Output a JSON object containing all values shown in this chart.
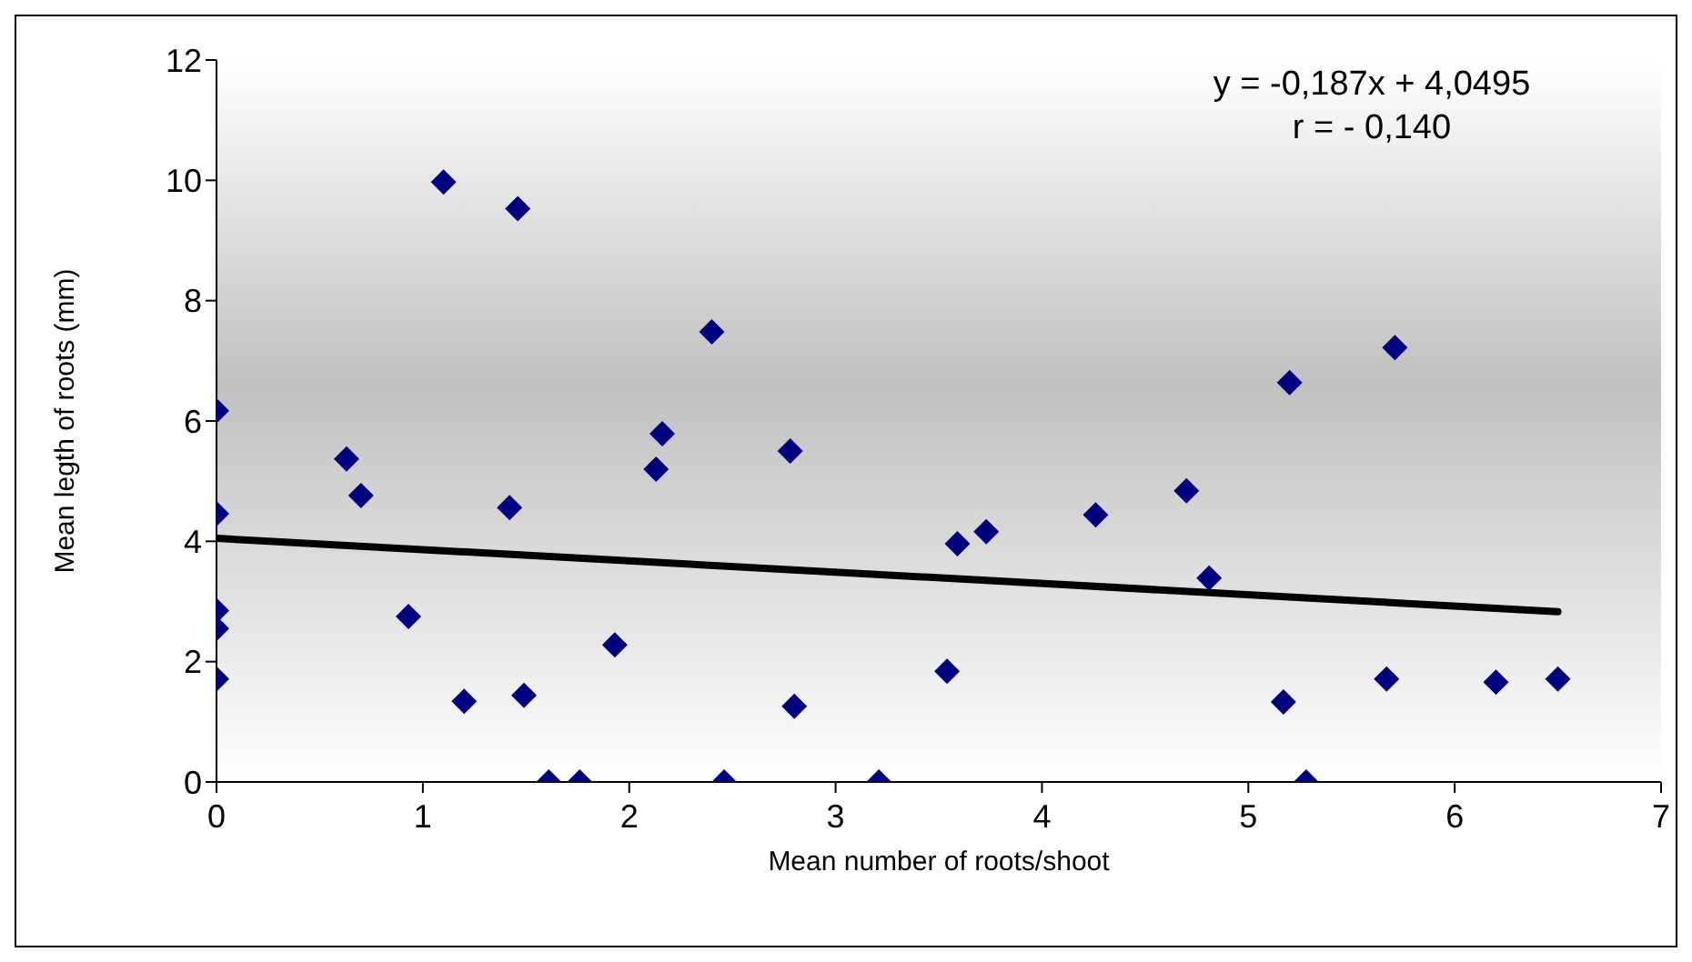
{
  "chart_data": {
    "type": "scatter",
    "xlabel": "Mean number of roots/shoot",
    "ylabel": "Mean legth of roots (mm)",
    "annotations": [
      "y = -0,187x + 4,0495",
      "r = - 0,140"
    ],
    "xlim": [
      0,
      7
    ],
    "xticks": [
      0,
      1,
      2,
      3,
      4,
      5,
      6,
      7
    ],
    "ylim": [
      0,
      12
    ],
    "yticks": [
      0,
      2,
      4,
      6,
      8,
      10,
      12
    ],
    "grid": false,
    "legend": false,
    "series": [
      {
        "color": "#000080",
        "marker": "diamond",
        "x": [
          0,
          0,
          0,
          0,
          0,
          0.63,
          0.7,
          0.93,
          1.1,
          1.2,
          1.46,
          1.42,
          1.49,
          1.61,
          1.76,
          1.93,
          2.13,
          2.16,
          2.4,
          2.46,
          2.78,
          2.8,
          3.21,
          3.54,
          3.59,
          3.73,
          4.26,
          4.7,
          4.81,
          5.2,
          5.17,
          5.28,
          5.71,
          5.67,
          6.2,
          6.5
        ],
        "values": [
          6.17,
          4.46,
          2.85,
          2.55,
          1.71,
          5.37,
          4.76,
          2.75,
          9.97,
          1.34,
          9.53,
          4.56,
          1.44,
          0,
          0,
          2.28,
          5.2,
          5.79,
          7.48,
          0,
          5.5,
          1.26,
          0,
          1.84,
          3.96,
          4.16,
          4.44,
          4.84,
          3.39,
          6.64,
          1.33,
          0,
          7.22,
          1.71,
          1.66,
          1.71
        ]
      },
      {
        "type": "line",
        "color": "#000000",
        "marker": "none",
        "line_style": "solid",
        "x": [
          0,
          6.5
        ],
        "values": [
          4.05,
          2.83
        ]
      }
    ]
  }
}
